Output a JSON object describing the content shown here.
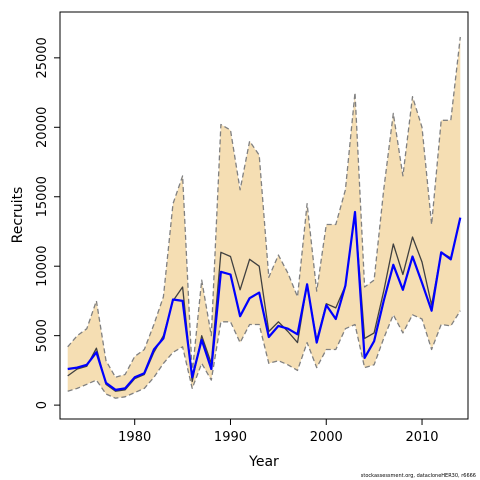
{
  "chart_data": {
    "type": "line",
    "title": "",
    "xlabel": "Year",
    "ylabel": "Recruits",
    "xlim": [
      1972.2,
      2014.8
    ],
    "ylim": [
      -1000,
      28300
    ],
    "x_ticks": [
      1980,
      1990,
      2000,
      2010
    ],
    "x_tick_labels": [
      "1980",
      "1990",
      "2000",
      "2010"
    ],
    "y_ticks": [
      0,
      5000,
      10000,
      15000,
      20000,
      25000
    ],
    "y_tick_labels": [
      "0",
      "5000",
      "10000",
      "15000",
      "20000",
      "25000"
    ],
    "x": [
      1973,
      1974,
      1975,
      1976,
      1977,
      1978,
      1979,
      1980,
      1981,
      1982,
      1983,
      1984,
      1985,
      1986,
      1987,
      1988,
      1989,
      1990,
      1991,
      1992,
      1993,
      1994,
      1995,
      1996,
      1997,
      1998,
      1999,
      2000,
      2001,
      2002,
      2003,
      2004,
      2005,
      2006,
      2007,
      2008,
      2009,
      2010,
      2011,
      2012,
      2013,
      2014
    ],
    "series": [
      {
        "name": "",
        "role": "upper_ci",
        "values": [
          4200,
          5000,
          5500,
          7500,
          3200,
          2000,
          2200,
          3500,
          4000,
          5800,
          7800,
          14500,
          16500,
          2300,
          9000,
          5000,
          20200,
          19800,
          15500,
          19000,
          18000,
          9200,
          10800,
          9500,
          7800,
          14500,
          8200,
          13000,
          13000,
          15500,
          22500,
          8500,
          9000,
          15500,
          21000,
          16500,
          22200,
          20000,
          13000,
          20500,
          20500,
          26500
        ],
        "color": "#808080",
        "style": "dashed"
      },
      {
        "name": "",
        "role": "lower_ci",
        "values": [
          1000,
          1200,
          1500,
          1800,
          800,
          500,
          600,
          900,
          1200,
          2000,
          3000,
          3800,
          4200,
          1200,
          3000,
          1800,
          6000,
          6000,
          4500,
          5800,
          5800,
          3000,
          3200,
          2900,
          2500,
          4500,
          2700,
          4000,
          4000,
          5500,
          5800,
          2700,
          2900,
          4800,
          6500,
          5200,
          6500,
          6200,
          4000,
          5800,
          5700,
          6800
        ],
        "color": "#808080",
        "style": "dashed"
      },
      {
        "name": "",
        "role": "estimate",
        "values": [
          2100,
          2600,
          2800,
          4100,
          1500,
          1000,
          1100,
          1900,
          2200,
          3800,
          5000,
          7500,
          8500,
          1700,
          5000,
          3000,
          11000,
          10700,
          8300,
          10500,
          10000,
          5300,
          6000,
          5300,
          4500,
          8700,
          4700,
          7300,
          7000,
          8600,
          13800,
          4800,
          5200,
          8200,
          11600,
          9400,
          12100,
          10300,
          7200,
          11000,
          10600,
          13400
        ],
        "color": "#404040",
        "style": "solid"
      },
      {
        "name": "",
        "role": "estimate",
        "values": [
          2600,
          2700,
          2900,
          3800,
          1600,
          1100,
          1200,
          2000,
          2300,
          4000,
          4800,
          7600,
          7500,
          2000,
          4700,
          2600,
          9600,
          9400,
          6400,
          7700,
          8100,
          4900,
          5700,
          5500,
          5100,
          8700,
          4500,
          7200,
          6200,
          8600,
          13900,
          3400,
          4600,
          7500,
          10100,
          8300,
          10700,
          8800,
          6800,
          11000,
          10500,
          13500
        ],
        "color": "#0000ff",
        "style": "solid"
      }
    ],
    "band_fill": "#f5deb3",
    "footer": "stockassessment.org, datacloneHER30, r6666"
  }
}
